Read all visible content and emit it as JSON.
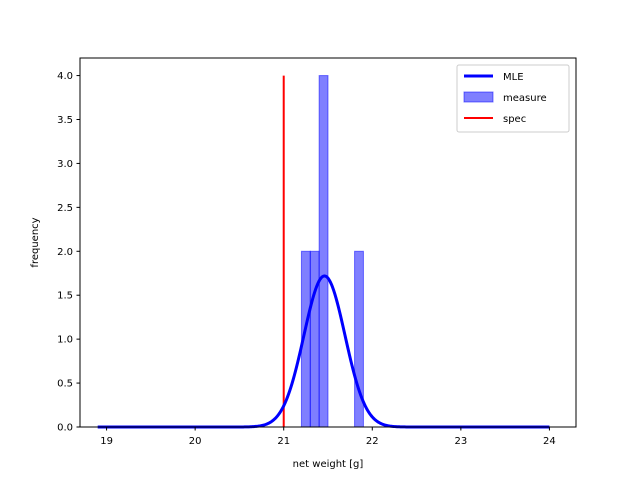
{
  "chart_data": {
    "type": "histogram",
    "xlabel": "net weight [g]",
    "ylabel": "frequency",
    "xlim": [
      18.7,
      24.3
    ],
    "ylim": [
      0,
      4.2
    ],
    "xticks": [
      19,
      20,
      21,
      22,
      23,
      24
    ],
    "xtick_labels": [
      "19",
      "20",
      "21",
      "22",
      "23",
      "24"
    ],
    "yticks": [
      0,
      0.5,
      1.0,
      1.5,
      2.0,
      2.5,
      3.0,
      3.5,
      4.0
    ],
    "ytick_labels": [
      "0.0",
      "0.5",
      "1.0",
      "1.5",
      "2.0",
      "2.5",
      "3.0",
      "3.5",
      "4.0"
    ],
    "grid": false,
    "legend_position": "top-right",
    "series": [
      {
        "name": "MLE",
        "kind": "line",
        "color": "#0000ff",
        "distribution": "normal",
        "mean": 21.46,
        "std": 0.232,
        "x_range": [
          18.9,
          24.0
        ]
      },
      {
        "name": "measure",
        "kind": "histogram",
        "color": "#0000ff",
        "bin_width": 0.1,
        "bins": [
          {
            "x0": 21.2,
            "x1": 21.3,
            "count": 2
          },
          {
            "x0": 21.3,
            "x1": 21.4,
            "count": 2
          },
          {
            "x0": 21.4,
            "x1": 21.5,
            "count": 4
          },
          {
            "x0": 21.8,
            "x1": 21.9,
            "count": 2
          }
        ]
      },
      {
        "name": "spec",
        "kind": "vline",
        "color": "#ff0000",
        "x": 21.0,
        "y_range": [
          0,
          4.0
        ]
      }
    ]
  }
}
